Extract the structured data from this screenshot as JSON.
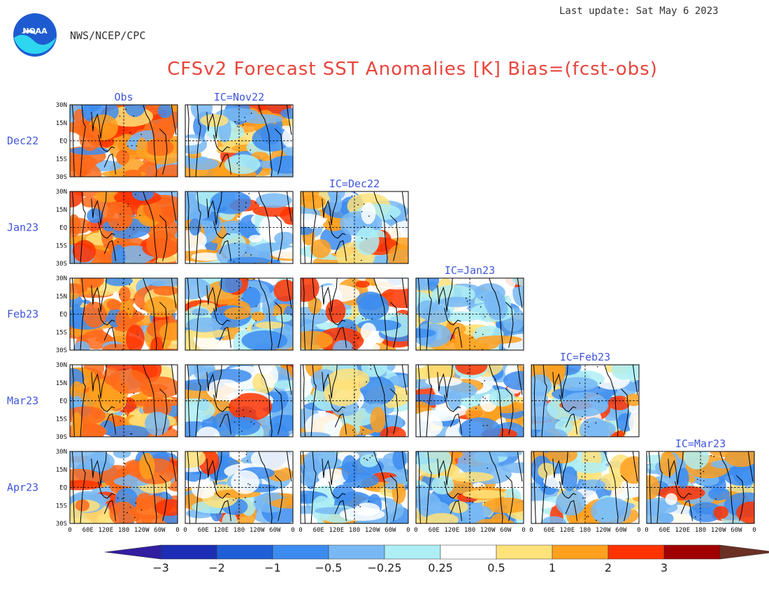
{
  "header": {
    "last_update": "Last update: Sat May 6 2023",
    "agency": "NWS/NCEP/CPC",
    "logo_text": "NOAA",
    "title": "CFSv2 Forecast SST Anomalies [K] Bias=(fcst-obs)"
  },
  "chart_data": {
    "type": "heatmap",
    "title": "CFSv2 Forecast SST Anomalies [K] Bias=(fcst-obs)",
    "column_headers": [
      "Obs",
      "IC=Nov22",
      "IC=Dec22",
      "IC=Jan23",
      "IC=Feb23",
      "IC=Mar23"
    ],
    "row_labels": [
      "Dec22",
      "Jan23",
      "Feb23",
      "Mar23",
      "Apr23"
    ],
    "lat_ticks": [
      "30N",
      "15N",
      "EQ",
      "15S",
      "30S"
    ],
    "lon_ticks": [
      "0",
      "60E",
      "120E",
      "180",
      "120W",
      "60W",
      "0"
    ],
    "panels_per_row": [
      2,
      3,
      4,
      5,
      6
    ],
    "colorbar": {
      "labels": [
        "−3",
        "−2",
        "−1",
        "−0.5",
        "−0.25",
        "0.25",
        "0.5",
        "1",
        "2",
        "3"
      ],
      "colors": [
        "#1c2eb4",
        "#1f5fd6",
        "#3c8cf0",
        "#78b9f5",
        "#aeeef5",
        "#ffffff",
        "#ffe27a",
        "#ffa01e",
        "#ff3300",
        "#a00000",
        "#6b3024",
        "#321ea0"
      ]
    }
  }
}
